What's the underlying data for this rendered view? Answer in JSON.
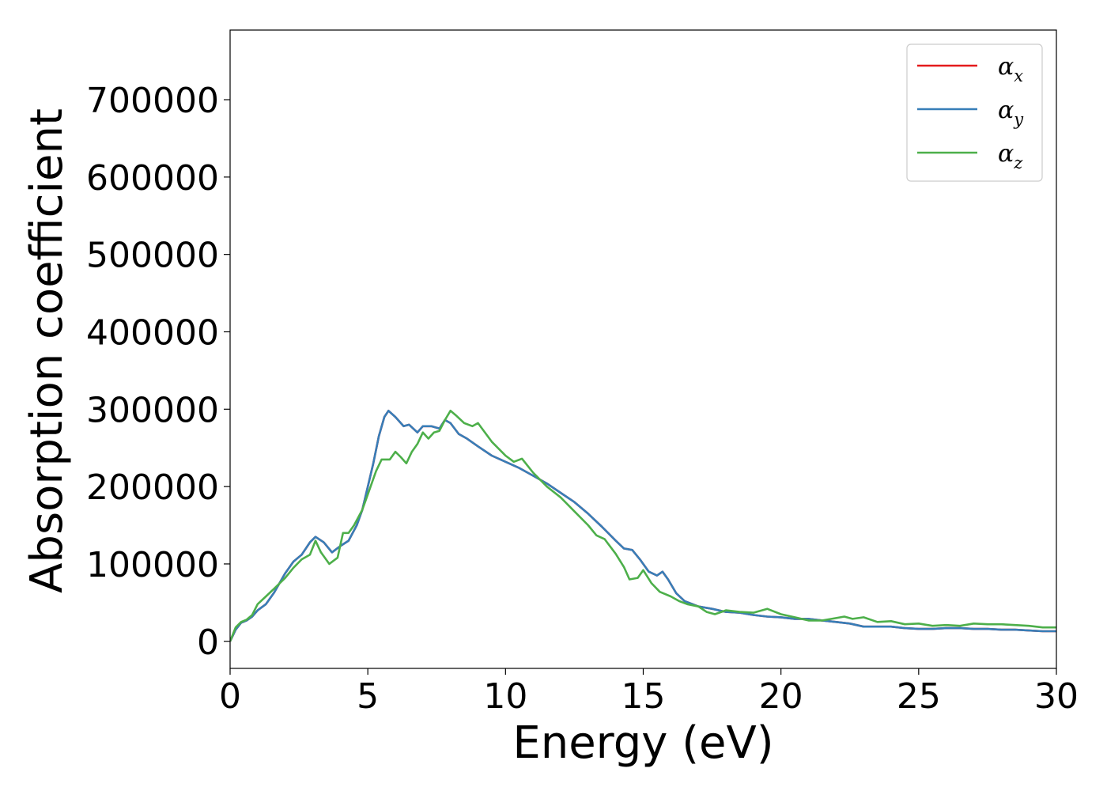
{
  "chart_data": {
    "type": "line",
    "title": "",
    "xlabel": "Energy (eV)",
    "ylabel": "Absorption coefficient",
    "xlim": [
      0,
      30
    ],
    "ylim": [
      -35000,
      790000
    ],
    "xticks": [
      0,
      5,
      10,
      15,
      20,
      25,
      30
    ],
    "xtick_labels": [
      "0",
      "5",
      "10",
      "15",
      "20",
      "25",
      "30"
    ],
    "yticks": [
      0,
      100000,
      200000,
      300000,
      400000,
      500000,
      600000,
      700000
    ],
    "ytick_labels": [
      "0",
      "100000",
      "200000",
      "300000",
      "400000",
      "500000",
      "600000",
      "700000"
    ],
    "grid": false,
    "legend_position": "top-right",
    "series": [
      {
        "name": "αx",
        "legend_symbol": "α",
        "legend_sub": "x",
        "color": "#e41a1c",
        "x": [
          0,
          0.2,
          0.4,
          0.6,
          0.8,
          1.0,
          1.3,
          1.6,
          2.0,
          2.3,
          2.6,
          2.9,
          3.1,
          3.4,
          3.7,
          4.0,
          4.3,
          4.6,
          4.8,
          5.0,
          5.2,
          5.4,
          5.6,
          5.75,
          6.0,
          6.3,
          6.5,
          6.8,
          7.0,
          7.3,
          7.6,
          7.8,
          8.0,
          8.3,
          8.6,
          9.0,
          9.5,
          10.0,
          10.5,
          11.0,
          11.5,
          12.0,
          12.5,
          13.0,
          13.5,
          14.0,
          14.3,
          14.6,
          14.9,
          15.2,
          15.5,
          15.7,
          15.9,
          16.2,
          16.5,
          17.0,
          17.5,
          18.0,
          18.5,
          19.0,
          19.5,
          20.0,
          20.5,
          21.0,
          21.5,
          22.0,
          22.5,
          23.0,
          23.5,
          24.0,
          24.5,
          25.0,
          25.5,
          26.0,
          26.5,
          27.0,
          27.5,
          28.0,
          28.5,
          29.0,
          29.5,
          30.0
        ],
        "values": [
          0,
          15000,
          24000,
          27000,
          32000,
          40000,
          48000,
          63000,
          88000,
          103000,
          112000,
          128000,
          135000,
          128000,
          115000,
          123000,
          130000,
          150000,
          170000,
          200000,
          230000,
          265000,
          290000,
          298000,
          290000,
          278000,
          280000,
          270000,
          278000,
          278000,
          275000,
          286000,
          282000,
          268000,
          262000,
          252000,
          240000,
          232000,
          224000,
          214000,
          204000,
          192000,
          180000,
          165000,
          148000,
          130000,
          120000,
          118000,
          105000,
          90000,
          85000,
          90000,
          80000,
          62000,
          52000,
          45000,
          42000,
          38000,
          37000,
          34000,
          32000,
          31000,
          29000,
          29000,
          27000,
          25000,
          23000,
          19000,
          19000,
          19000,
          17000,
          16000,
          16000,
          17000,
          17000,
          16000,
          16000,
          15000,
          15000,
          14000,
          13000,
          13000
        ]
      },
      {
        "name": "αy",
        "legend_symbol": "α",
        "legend_sub": "y",
        "color": "#377eb8",
        "x": [
          0,
          0.2,
          0.4,
          0.6,
          0.8,
          1.0,
          1.3,
          1.6,
          2.0,
          2.3,
          2.6,
          2.9,
          3.1,
          3.4,
          3.7,
          4.0,
          4.3,
          4.6,
          4.8,
          5.0,
          5.2,
          5.4,
          5.6,
          5.75,
          6.0,
          6.3,
          6.5,
          6.8,
          7.0,
          7.3,
          7.6,
          7.8,
          8.0,
          8.3,
          8.6,
          9.0,
          9.5,
          10.0,
          10.5,
          11.0,
          11.5,
          12.0,
          12.5,
          13.0,
          13.5,
          14.0,
          14.3,
          14.6,
          14.9,
          15.2,
          15.5,
          15.7,
          15.9,
          16.2,
          16.5,
          17.0,
          17.5,
          18.0,
          18.5,
          19.0,
          19.5,
          20.0,
          20.5,
          21.0,
          21.5,
          22.0,
          22.5,
          23.0,
          23.5,
          24.0,
          24.5,
          25.0,
          25.5,
          26.0,
          26.5,
          27.0,
          27.5,
          28.0,
          28.5,
          29.0,
          29.5,
          30.0
        ],
        "values": [
          0,
          15000,
          24000,
          27000,
          32000,
          40000,
          48000,
          63000,
          88000,
          103000,
          112000,
          128000,
          135000,
          128000,
          115000,
          123000,
          130000,
          150000,
          170000,
          200000,
          230000,
          265000,
          290000,
          298000,
          290000,
          278000,
          280000,
          270000,
          278000,
          278000,
          275000,
          286000,
          282000,
          268000,
          262000,
          252000,
          240000,
          232000,
          224000,
          214000,
          204000,
          192000,
          180000,
          165000,
          148000,
          130000,
          120000,
          118000,
          105000,
          90000,
          85000,
          90000,
          80000,
          62000,
          52000,
          45000,
          42000,
          38000,
          37000,
          34000,
          32000,
          31000,
          29000,
          29000,
          27000,
          25000,
          23000,
          19000,
          19000,
          19000,
          17000,
          16000,
          16000,
          17000,
          17000,
          16000,
          16000,
          15000,
          15000,
          14000,
          13000,
          13000
        ]
      },
      {
        "name": "αz",
        "legend_symbol": "α",
        "legend_sub": "z",
        "color": "#4daf4a",
        "x": [
          0,
          0.2,
          0.4,
          0.6,
          0.8,
          1.0,
          1.3,
          1.6,
          2.0,
          2.3,
          2.6,
          2.9,
          3.1,
          3.3,
          3.6,
          3.9,
          4.1,
          4.3,
          4.5,
          4.8,
          5.0,
          5.3,
          5.5,
          5.8,
          6.0,
          6.2,
          6.4,
          6.6,
          6.8,
          7.0,
          7.2,
          7.4,
          7.6,
          7.8,
          8.0,
          8.2,
          8.5,
          8.8,
          9.0,
          9.5,
          10.0,
          10.3,
          10.6,
          11.0,
          11.5,
          12.0,
          12.5,
          13.0,
          13.3,
          13.6,
          14.0,
          14.3,
          14.5,
          14.8,
          15.0,
          15.3,
          15.6,
          16.0,
          16.3,
          16.6,
          17.0,
          17.3,
          17.6,
          18.0,
          18.5,
          19.0,
          19.5,
          20.0,
          20.5,
          21.0,
          21.5,
          22.0,
          22.3,
          22.6,
          23.0,
          23.5,
          24.0,
          24.5,
          25.0,
          25.5,
          26.0,
          26.5,
          27.0,
          27.5,
          28.0,
          28.5,
          29.0,
          29.5,
          30.0
        ],
        "values": [
          0,
          18000,
          25000,
          28000,
          34000,
          48000,
          58000,
          68000,
          82000,
          95000,
          106000,
          112000,
          130000,
          115000,
          100000,
          108000,
          140000,
          140000,
          150000,
          170000,
          190000,
          220000,
          235000,
          235000,
          245000,
          238000,
          230000,
          245000,
          255000,
          270000,
          262000,
          270000,
          272000,
          286000,
          298000,
          292000,
          282000,
          278000,
          282000,
          258000,
          240000,
          232000,
          236000,
          218000,
          200000,
          186000,
          168000,
          150000,
          137000,
          132000,
          113000,
          96000,
          80000,
          82000,
          92000,
          75000,
          64000,
          58000,
          52000,
          48000,
          45000,
          38000,
          35000,
          40000,
          38000,
          37000,
          42000,
          35000,
          31000,
          27000,
          27000,
          30000,
          32000,
          29000,
          31000,
          25000,
          26000,
          22000,
          23000,
          20000,
          21000,
          20000,
          23000,
          22000,
          22000,
          21000,
          20000,
          18000,
          18000
        ]
      }
    ]
  }
}
